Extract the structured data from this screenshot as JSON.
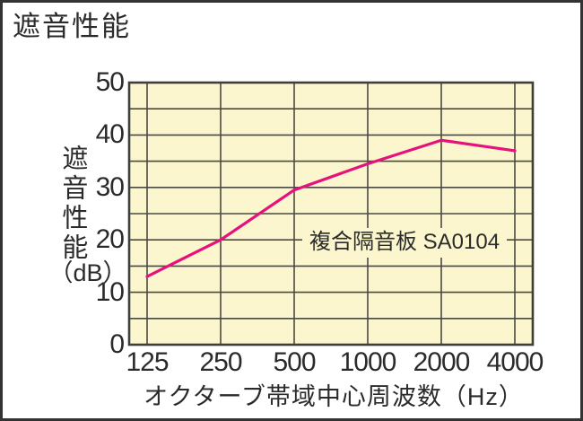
{
  "chart_data": {
    "type": "line",
    "title": "遮音性能",
    "x_label": "オクターブ帯域中心周波数（Hz）",
    "y_label": "遮音性能",
    "y_unit": "（dB）",
    "x_scale": "log2",
    "categories": [
      125,
      250,
      500,
      1000,
      2000,
      4000
    ],
    "x_tick_labels": [
      "125",
      "250",
      "500",
      "1000",
      "2000",
      "4000"
    ],
    "y_ticks": [
      0,
      10,
      20,
      30,
      40,
      50
    ],
    "ylim": [
      0,
      50
    ],
    "grid": true,
    "grid_step_db": 5,
    "legend_position": "inline-annotation",
    "series": [
      {
        "name": "複合隔音板 SA0104",
        "values": [
          13,
          20,
          29.5,
          34.5,
          39,
          37
        ],
        "color": "#e7117e"
      }
    ],
    "colors": {
      "plot_background": "#fbf6cd",
      "grid": "#4a4a42",
      "frame": "#3f3f39",
      "text": "#2b2b2b",
      "page_border": "#333333"
    }
  }
}
